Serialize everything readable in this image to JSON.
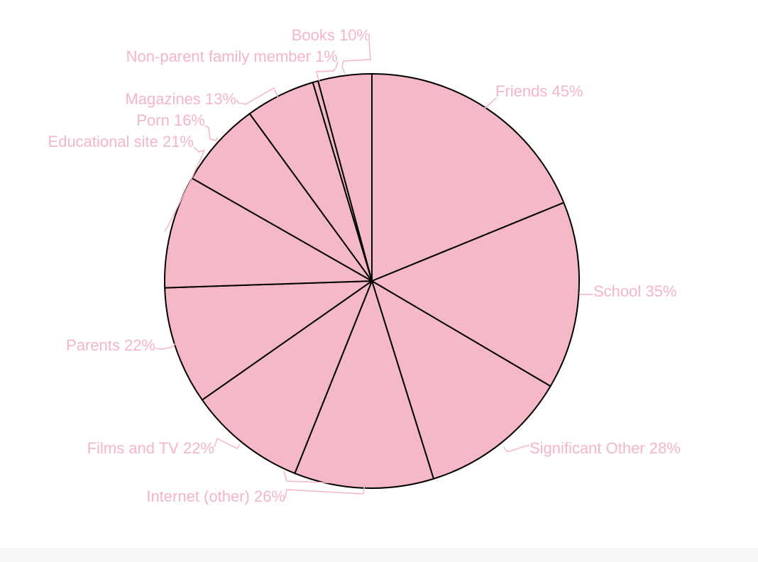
{
  "chart_data": {
    "type": "pie",
    "start_position": "12 o'clock",
    "direction": "clockwise",
    "slices": [
      {
        "label": "Friends",
        "value": 45,
        "display": "Friends 45%"
      },
      {
        "label": "School",
        "value": 35,
        "display": "School 35%"
      },
      {
        "label": "Significant Other",
        "value": 28,
        "display": "Significant Other 28%"
      },
      {
        "label": "Internet (other)",
        "value": 26,
        "display": "Internet (other) 26%"
      },
      {
        "label": "Films and TV",
        "value": 22,
        "display": "Films and TV 22%"
      },
      {
        "label": "Parents",
        "value": 22,
        "display": "Parents 22%"
      },
      {
        "label": "Educational site",
        "value": 21,
        "display": "Educational site 21%"
      },
      {
        "label": "Porn",
        "value": 16,
        "display": "Porn 16%"
      },
      {
        "label": "Magazines",
        "value": 13,
        "display": "Magazines 13%"
      },
      {
        "label": "Non-parent family member",
        "value": 1,
        "display": "Non-parent family member 1%"
      },
      {
        "label": "Books",
        "value": 10,
        "display": "Books 10%"
      }
    ]
  },
  "colors": {
    "slice_fill": "#f4b8c6",
    "slice_stroke": "#000000",
    "label_text": "#f4b6c6",
    "leader_line": "#f4b6c6",
    "bottom_band": "#f7f7f8"
  }
}
